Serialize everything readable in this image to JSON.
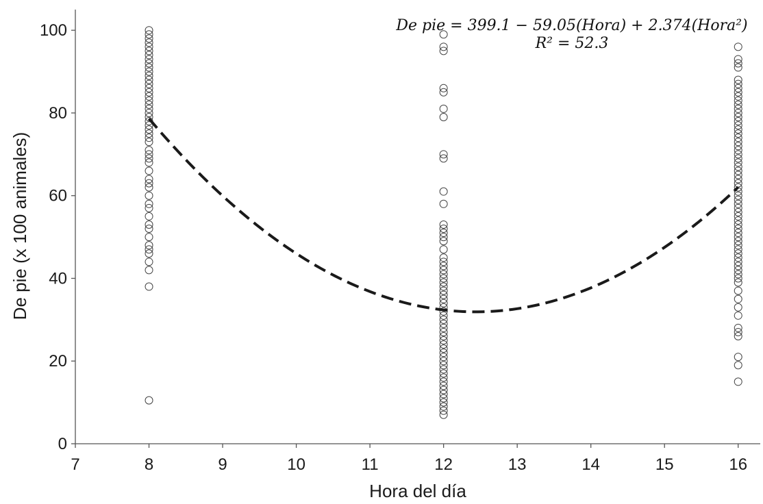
{
  "chart_data": {
    "type": "scatter",
    "xlabel": "Hora del día",
    "ylabel": "De pie (x 100 animales)",
    "xlim": [
      7,
      16.3
    ],
    "ylim": [
      0,
      105
    ],
    "xticks": [
      7,
      8,
      9,
      10,
      11,
      12,
      13,
      14,
      15,
      16
    ],
    "yticks": [
      0,
      20,
      40,
      60,
      80,
      100
    ],
    "grid": false,
    "annotation": {
      "equation": "De pie = 399.1 − 59.05(Hora) + 2.374(Hora²)",
      "r2": "R² = 52.3"
    },
    "fit": {
      "style": "dashed",
      "intercept": 399.1,
      "b1": -59.05,
      "b2": 2.374,
      "x_range": [
        8,
        16
      ]
    },
    "series": [
      {
        "x": 8,
        "values": [
          100,
          99,
          98,
          97,
          96,
          95,
          94,
          93,
          92,
          91,
          90,
          89,
          88,
          87,
          86,
          85,
          84,
          83,
          82,
          81,
          80,
          79,
          78,
          77,
          76,
          75,
          74,
          73,
          71,
          70,
          69,
          68,
          66,
          64,
          63,
          62,
          60,
          58,
          57,
          55,
          53,
          52,
          50,
          48,
          47,
          46,
          44,
          42,
          38,
          10.5
        ]
      },
      {
        "x": 12,
        "values": [
          99,
          96,
          95,
          86,
          85,
          81,
          79,
          70,
          69,
          61,
          58,
          53,
          52,
          51,
          50,
          49,
          47,
          45,
          44,
          43,
          42,
          41,
          40,
          39,
          38,
          37,
          36,
          35,
          34,
          33,
          32,
          31,
          30,
          29,
          28,
          27,
          26,
          25,
          24,
          23,
          22,
          21,
          20,
          19,
          18,
          17,
          16,
          15,
          14,
          13,
          12,
          11,
          10,
          9,
          8,
          7
        ]
      },
      {
        "x": 16,
        "values": [
          96,
          93,
          92,
          91,
          88,
          87,
          86,
          85,
          84,
          83,
          82,
          81,
          80,
          79,
          78,
          77,
          76,
          75,
          74,
          73,
          72,
          71,
          70,
          69,
          68,
          67,
          66,
          65,
          64,
          63,
          62,
          61,
          60,
          59,
          58,
          57,
          56,
          55,
          54,
          53,
          52,
          51,
          50,
          49,
          48,
          47,
          46,
          45,
          44,
          43,
          42,
          41,
          40,
          39,
          37,
          35,
          33,
          31,
          28,
          27,
          26,
          21,
          19,
          15
        ]
      }
    ]
  }
}
